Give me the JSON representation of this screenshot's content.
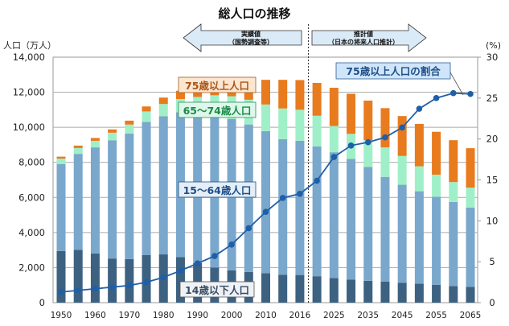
{
  "chart_data": {
    "type": "bar",
    "title": "総人口の推移",
    "ylabel": "人口（万人）",
    "y2label": "(%)",
    "ylim": [
      0,
      14000
    ],
    "y2lim": [
      0,
      30
    ],
    "yticks": [
      "0",
      "2,000",
      "4,000",
      "6,000",
      "8,000",
      "10,000",
      "12,000",
      "14,000"
    ],
    "y2ticks": [
      "0",
      "5",
      "10",
      "15",
      "20",
      "25",
      "30"
    ],
    "grid": true,
    "categories": [
      "1950",
      "1955",
      "1960",
      "1965",
      "1970",
      "1975",
      "1980",
      "1985",
      "1990",
      "1995",
      "2000",
      "2005",
      "2010",
      "2015",
      "2016",
      "2020",
      "2025",
      "2030",
      "2035",
      "2040",
      "2045",
      "2050",
      "2055",
      "2060",
      "2065"
    ],
    "xtick_labels": [
      "1950",
      "",
      "1960",
      "",
      "1970",
      "",
      "1980",
      "",
      "1990",
      "",
      "2000",
      "",
      "2010",
      "",
      "2016",
      "",
      "2025",
      "",
      "2035",
      "",
      "2045",
      "",
      "2055",
      "",
      "2065"
    ],
    "series": [
      {
        "name": "14歳以下人口",
        "color": "#3d6181",
        "values": [
          2943,
          3012,
          2807,
          2517,
          2482,
          2722,
          2751,
          2603,
          2249,
          2001,
          1847,
          1752,
          1680,
          1595,
          1578,
          1507,
          1407,
          1321,
          1246,
          1194,
          1138,
          1077,
          1012,
          951,
          898
        ]
      },
      {
        "name": "15〜64歳人口",
        "color": "#7aa7cc",
        "values": [
          4966,
          5473,
          6047,
          6744,
          7157,
          7581,
          7883,
          8251,
          8590,
          8716,
          8622,
          8409,
          8103,
          7728,
          7656,
          7406,
          7170,
          6875,
          6494,
          5978,
          5584,
          5275,
          5028,
          4793,
          4529
        ]
      },
      {
        "name": "65〜74歳人口",
        "color": "#9ff0c8",
        "values": [
          309,
          332,
          375,
          430,
          516,
          602,
          694,
          759,
          892,
          1109,
          1301,
          1412,
          1517,
          1752,
          1768,
          1747,
          1497,
          1428,
          1522,
          1681,
          1643,
          1424,
          1258,
          1133,
          1133
        ]
      },
      {
        "name": "75歳以上人口",
        "color": "#e87b1e",
        "values": [
          107,
          139,
          163,
          189,
          224,
          284,
          366,
          471,
          597,
          717,
          901,
          1164,
          1407,
          1632,
          1691,
          1872,
          2180,
          2288,
          2260,
          2239,
          2277,
          2417,
          2446,
          2387,
          2248
        ]
      }
    ],
    "line": {
      "name": "75歳以上人口の割合",
      "color": "#1f5fa8",
      "axis": "right",
      "values": [
        1.3,
        1.5,
        1.7,
        1.9,
        2.1,
        2.5,
        3.1,
        3.9,
        4.8,
        5.7,
        7.1,
        9.1,
        11.1,
        12.8,
        13.3,
        14.9,
        17.8,
        19.2,
        19.6,
        20.2,
        21.4,
        23.7,
        25.0,
        25.6,
        25.5
      ]
    },
    "annotations": {
      "actual_label_line1": "実績値",
      "actual_label_line2": "（国勢調査等）",
      "projected_label_line1": "推計値",
      "projected_label_line2": "（日本の将来人口推計）",
      "divider_after": "2016"
    },
    "series_labels": {
      "age75": "75歳以上人口",
      "age65": "65〜74歳人口",
      "age15": "15〜64歳人口",
      "age0": "14歳以下人口",
      "ratio": "75歳以上人口の割合"
    }
  }
}
